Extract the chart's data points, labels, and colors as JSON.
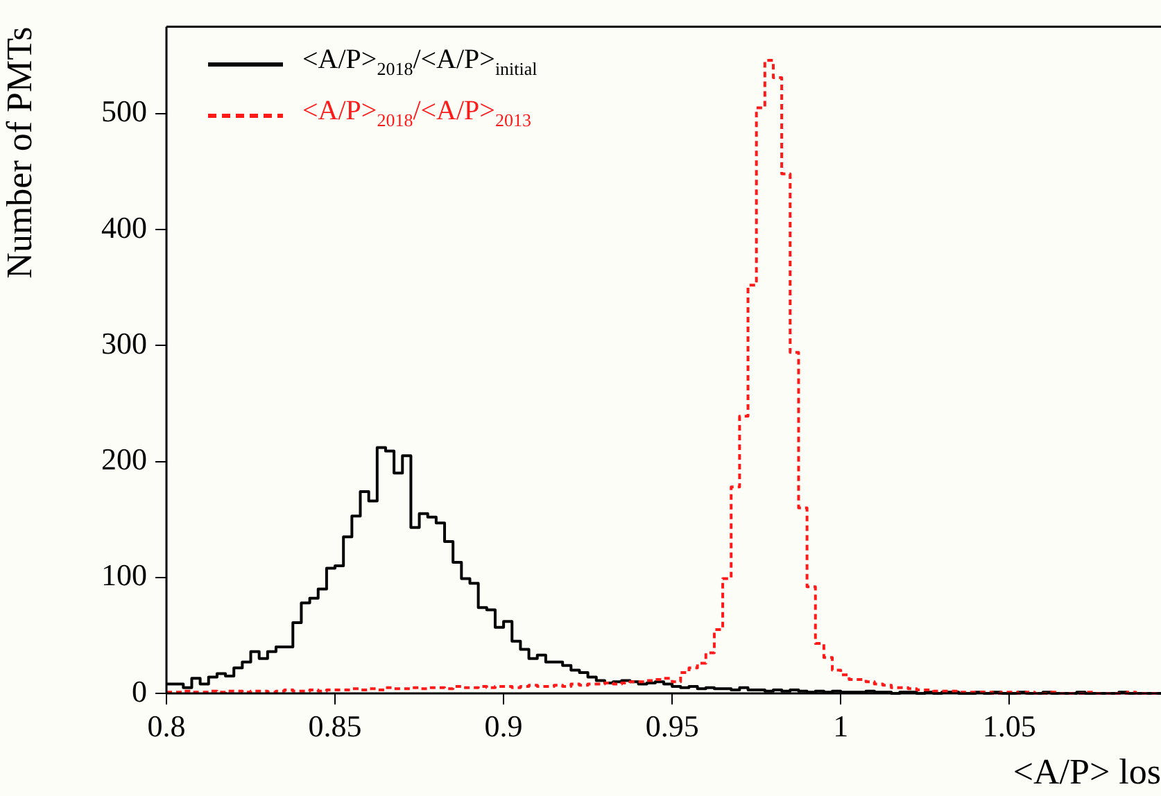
{
  "chart_data": {
    "type": "histogram",
    "xlabel": "<A/P> los",
    "ylabel": "Number of PMTs",
    "bins": [
      0.8,
      0.8025,
      0.805,
      0.8075,
      0.81,
      0.8125,
      0.815,
      0.8175,
      0.82,
      0.8225,
      0.825,
      0.8275,
      0.83,
      0.8325,
      0.835,
      0.8375,
      0.84,
      0.8425,
      0.845,
      0.8475,
      0.85,
      0.8525,
      0.855,
      0.8575,
      0.86,
      0.8625,
      0.865,
      0.8675,
      0.87,
      0.8725,
      0.875,
      0.8775,
      0.88,
      0.8825,
      0.885,
      0.8875,
      0.89,
      0.8925,
      0.895,
      0.8975,
      0.9,
      0.9025,
      0.905,
      0.9075,
      0.91,
      0.9125,
      0.915,
      0.9175,
      0.92,
      0.9225,
      0.925,
      0.9275,
      0.93,
      0.9325,
      0.935,
      0.9375,
      0.94,
      0.9425,
      0.945,
      0.9475,
      0.95,
      0.9525,
      0.955,
      0.9575,
      0.96,
      0.9625,
      0.965,
      0.9675,
      0.97,
      0.9725,
      0.975,
      0.9775,
      0.98,
      0.9825,
      0.985,
      0.9875,
      0.99,
      0.9925,
      0.995,
      0.9975,
      1,
      1.0025,
      1.005,
      1.0075,
      1.01,
      1.0125,
      1.015,
      1.0175,
      1.02,
      1.0225,
      1.025,
      1.0275,
      1.03,
      1.0325,
      1.035,
      1.0375,
      1.04,
      1.0425,
      1.045,
      1.0475,
      1.05,
      1.0525,
      1.055,
      1.0575,
      1.06,
      1.0625,
      1.065,
      1.0675,
      1.07,
      1.0725,
      1.075,
      1.0775,
      1.08,
      1.0825,
      1.085,
      1.0875,
      1.09,
      1.0925,
      1.095
    ],
    "series": [
      {
        "name": "<A/P>$_{2018}$/<A/P>$_{initial}$",
        "color": "#000000",
        "line_style": "solid",
        "values": [
          8,
          8,
          5,
          13,
          8,
          14,
          17,
          15,
          22,
          27,
          36,
          30,
          36,
          40,
          40,
          61,
          78,
          82,
          90,
          108,
          110,
          135,
          153,
          174,
          166,
          212,
          209,
          190,
          205,
          143,
          155,
          152,
          147,
          131,
          113,
          99,
          95,
          74,
          72,
          57,
          62,
          45,
          38,
          30,
          33,
          27,
          27,
          24,
          20,
          18,
          14,
          11,
          9,
          10,
          11,
          10,
          8,
          9,
          10,
          8,
          6,
          5,
          6,
          4,
          5,
          4,
          4,
          3,
          5,
          3,
          3,
          2,
          3,
          2,
          3,
          2,
          1,
          2,
          1,
          2,
          1,
          1,
          1,
          2,
          1,
          1,
          0,
          1,
          1,
          0,
          1,
          0,
          1,
          1,
          0,
          0,
          1,
          0,
          1,
          0,
          0,
          1,
          0,
          0,
          1,
          0,
          0,
          0,
          1,
          0,
          0,
          0,
          0,
          1,
          0,
          0,
          0,
          0
        ]
      },
      {
        "name": "<A/P>$_{2018}$/<A/P>$_{2013}$",
        "color": "#ff1a1a",
        "line_style": "dashed",
        "values": [
          1,
          1,
          2,
          1,
          1,
          2,
          1,
          2,
          2,
          1,
          2,
          2,
          1,
          2,
          3,
          2,
          2,
          3,
          2,
          3,
          3,
          3,
          4,
          3,
          4,
          3,
          5,
          4,
          4,
          5,
          4,
          5,
          5,
          4,
          6,
          5,
          5,
          6,
          5,
          6,
          6,
          5,
          6,
          7,
          6,
          6,
          7,
          6,
          8,
          7,
          8,
          8,
          9,
          8,
          9,
          10,
          10,
          11,
          12,
          13,
          10,
          18,
          22,
          26,
          35,
          55,
          99,
          178,
          239,
          352,
          505,
          546,
          531,
          448,
          294,
          160,
          92,
          43,
          31,
          20,
          16,
          12,
          12,
          10,
          8,
          7,
          5,
          5,
          4,
          3,
          3,
          2,
          2,
          2,
          1,
          1,
          1,
          1,
          0,
          1,
          1,
          0,
          1,
          0,
          0,
          1,
          0,
          0,
          0,
          1,
          0,
          0,
          0,
          0,
          1,
          0,
          0,
          0
        ]
      }
    ],
    "xlim": [
      0.8,
      1.095
    ],
    "ylim": [
      0,
      575
    ],
    "xticks": [
      0.8,
      0.85,
      0.9,
      0.95,
      1,
      1.05
    ],
    "yticks": [
      0,
      100,
      200,
      300,
      400,
      500
    ],
    "grid": false,
    "legend": "top left"
  }
}
